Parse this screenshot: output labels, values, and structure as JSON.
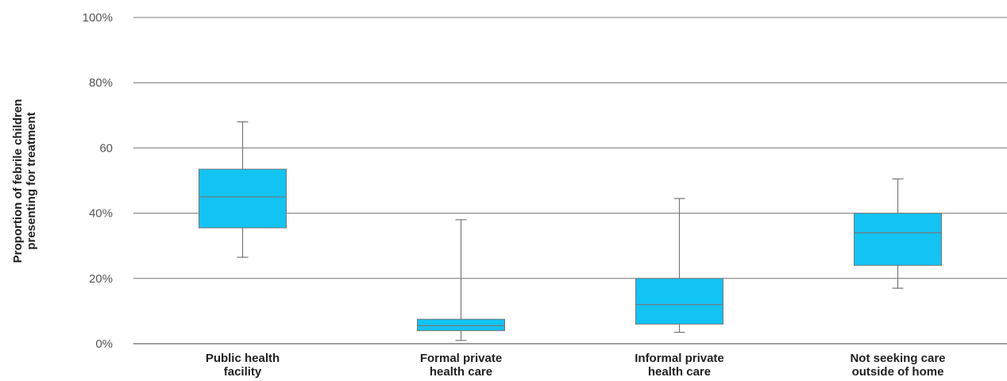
{
  "chart_data": {
    "type": "boxplot",
    "ylabel": [
      "Proportion of febrile children",
      "presenting for treatment"
    ],
    "ylim": [
      0,
      100
    ],
    "yticks": [
      {
        "value": 0,
        "label": "0%"
      },
      {
        "value": 20,
        "label": "20%"
      },
      {
        "value": 40,
        "label": "40%"
      },
      {
        "value": 60,
        "label": "60"
      },
      {
        "value": 80,
        "label": "80%"
      },
      {
        "value": 100,
        "label": "100%"
      }
    ],
    "categories": [
      [
        "Public health",
        "facility"
      ],
      [
        "Formal private",
        "health care"
      ],
      [
        "Informal private",
        "health care"
      ],
      [
        "Not seeking care",
        "outside of home"
      ]
    ],
    "boxes": [
      {
        "min": 26.5,
        "q1": 35.5,
        "median": 45,
        "q3": 53.5,
        "max": 68
      },
      {
        "min": 1,
        "q1": 4,
        "median": 5.5,
        "q3": 7.5,
        "max": 38
      },
      {
        "min": 3.5,
        "q1": 6,
        "median": 12,
        "q3": 20,
        "max": 44.5
      },
      {
        "min": 17,
        "q1": 24,
        "median": 34,
        "q3": 40,
        "max": 50.5
      }
    ],
    "box_color": "#13c3f2",
    "line_color": "#777777",
    "grid": true
  }
}
